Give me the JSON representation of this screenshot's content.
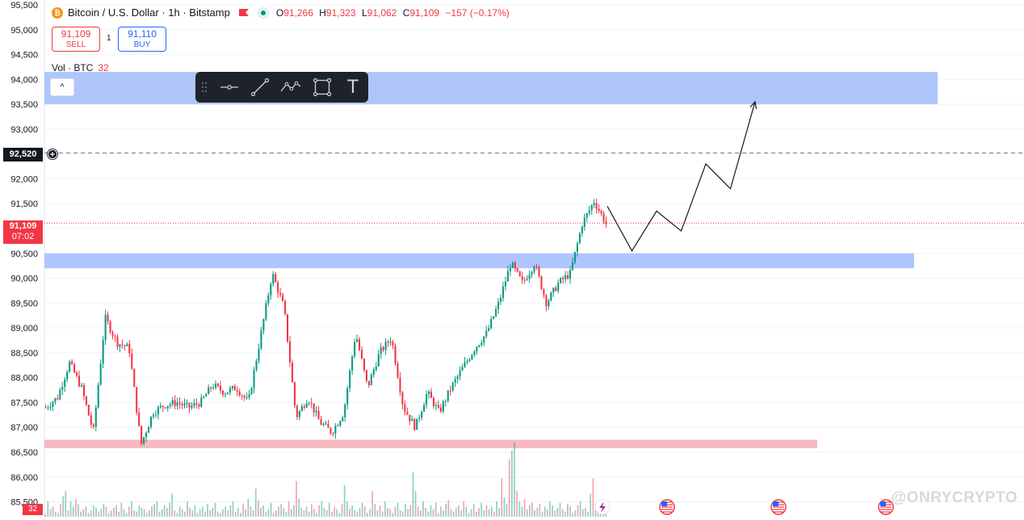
{
  "legend": {
    "symbol": "Bitcoin / U.S. Dollar · 1h · Bitstamp",
    "open_label": "O",
    "open": "91,266",
    "high_label": "H",
    "high": "91,323",
    "low_label": "L",
    "low": "91,062",
    "close_label": "C",
    "close": "91,109",
    "change": "−157 (−0.17%)"
  },
  "trade": {
    "sell_price": "91,109",
    "sell_label": "SELL",
    "spread": "1",
    "buy_price": "91,110",
    "buy_label": "BUY"
  },
  "volume_legend": {
    "label": "Vol · BTC",
    "value": "32"
  },
  "collapse_glyph": "^",
  "toolbar": {
    "items": [
      "drag-handle-icon",
      "horizontal-line-tool-icon",
      "trend-line-tool-icon",
      "path-tool-icon",
      "rectangle-tool-icon",
      "text-tool-icon"
    ],
    "text_tool_glyph": "T"
  },
  "crosshair_price": "92,520",
  "last_price": {
    "price": "91,109",
    "countdown": "07:02"
  },
  "volume_tag": "32",
  "watermark": "@ONRYCRYPTO",
  "colors": {
    "up": "#089981",
    "down": "#f23645",
    "zone_blue": "#abc3fc",
    "zone_red": "#f7b6bd"
  },
  "event_icons": [
    "lightning-icon",
    "us-flag-icon",
    "us-flag-icon",
    "us-flag-icon"
  ],
  "chart_data": {
    "type": "candlestick",
    "ylim": [
      85200,
      95500
    ],
    "yticks": [
      "95,500",
      "95,000",
      "94,500",
      "94,000",
      "93,500",
      "93,000",
      "92,500",
      "92,000",
      "91,500",
      "91,000",
      "90,500",
      "90,000",
      "89,500",
      "89,000",
      "88,500",
      "88,000",
      "87,500",
      "87,000",
      "86,500",
      "86,000",
      "85,500"
    ],
    "anchors": [
      87400,
      87600,
      88300,
      87800,
      86900,
      89200,
      88700,
      88600,
      86650,
      87300,
      87450,
      87500,
      87400,
      87500,
      87850,
      87700,
      87800,
      87500,
      88800,
      90100,
      89400,
      87200,
      87600,
      87100,
      86900,
      87300,
      88900,
      87800,
      88500,
      88800,
      87400,
      87000,
      87700,
      87300,
      87800,
      88200,
      88600,
      88900,
      89500,
      90300,
      89900,
      90300,
      89500,
      89900,
      90100,
      91100,
      91550,
      91100
    ],
    "zones": [
      {
        "name": "upper-target-zone",
        "from": 93500,
        "to": 94150,
        "color": "blue"
      },
      {
        "name": "support-zone",
        "from": 90200,
        "to": 90500,
        "color": "blue"
      },
      {
        "name": "lower-support-zone",
        "from": 86580,
        "to": 86750,
        "color": "red"
      }
    ],
    "projection": [
      91450,
      90550,
      91350,
      90950,
      92300,
      91800,
      93550
    ],
    "volumes": [
      2,
      12,
      6,
      8,
      4,
      3,
      10,
      16,
      20,
      5,
      12,
      8,
      14,
      10,
      4,
      6,
      8,
      3,
      5,
      9,
      7,
      4,
      6,
      10,
      8,
      3,
      5,
      7,
      9,
      4,
      11,
      6,
      3,
      8,
      12,
      5,
      4,
      9,
      7,
      6,
      3,
      5,
      8,
      10,
      12,
      4,
      6,
      9,
      7,
      11,
      18,
      5,
      3,
      8,
      6,
      4,
      12,
      7,
      5,
      9,
      3,
      6,
      8,
      4,
      10,
      5,
      7,
      11,
      4,
      3,
      6,
      8,
      5,
      9,
      12,
      4,
      7,
      3,
      10,
      6,
      14,
      8,
      5,
      22,
      13,
      7,
      9,
      4,
      6,
      11,
      3,
      5,
      8,
      10,
      7,
      4,
      12,
      6,
      9,
      28,
      14,
      7,
      5,
      8,
      4,
      10,
      6,
      3,
      9,
      12,
      7,
      5,
      11,
      4,
      8,
      6,
      3,
      10,
      25,
      12,
      6,
      9,
      5,
      4,
      7,
      11,
      8,
      3,
      6,
      20,
      10,
      5,
      9,
      4,
      12,
      7,
      6,
      3,
      8,
      11,
      5,
      4,
      10,
      6,
      9,
      35,
      20,
      8,
      5,
      12,
      7,
      4,
      9,
      6,
      11,
      3,
      8,
      5,
      10,
      13,
      6,
      4,
      7,
      9,
      5,
      12,
      8,
      3,
      6,
      10,
      4,
      7,
      11,
      5,
      9,
      6,
      8,
      4,
      12,
      7,
      30,
      15,
      10,
      45,
      52,
      58,
      20,
      12,
      8,
      14,
      6,
      9,
      11,
      5,
      7,
      10,
      4,
      8,
      6,
      12,
      9,
      5,
      7,
      11,
      6,
      4,
      10,
      8,
      3,
      5,
      9,
      12,
      6,
      7,
      4,
      18,
      30,
      10,
      6,
      8,
      5,
      9
    ],
    "volume_max": 60
  }
}
